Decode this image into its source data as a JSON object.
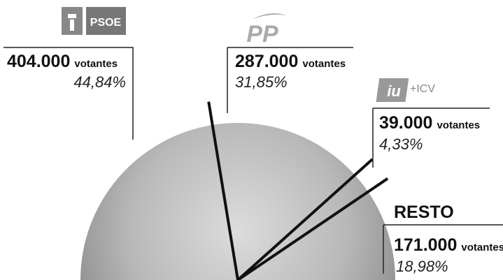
{
  "chart_data": {
    "type": "pie",
    "categories": [
      "PSOE",
      "PP",
      "+ICV",
      "RESTO"
    ],
    "values": [
      44.84,
      31.85,
      4.33,
      18.98
    ],
    "value_labels": [
      "44,84%",
      "31,85%",
      "4,33%",
      "18,98%"
    ],
    "vote_labels": [
      "404.000",
      "287.000",
      "39.000",
      "171.000"
    ],
    "unit": "votantes"
  }
}
